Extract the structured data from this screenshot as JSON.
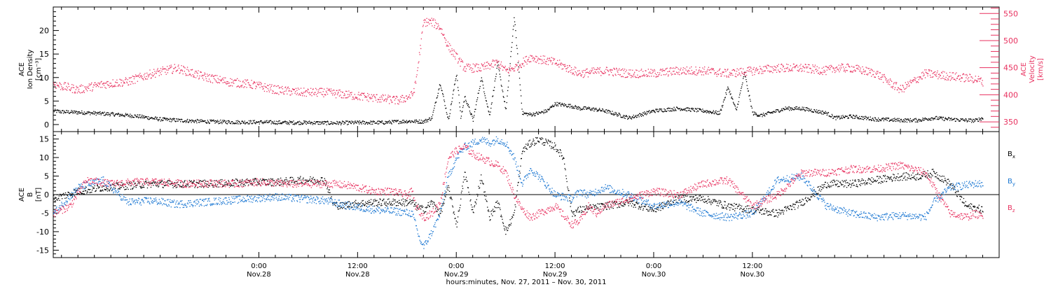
{
  "colors": {
    "black": "#000000",
    "pink": "#e8315f",
    "blue": "#1976d2"
  },
  "chart_data": [
    {
      "type": "scatter",
      "panel": "top",
      "ylabel_left": [
        "ACE",
        "Ion Density",
        "[cm⁻³]"
      ],
      "ylabel_right": [
        "ACE",
        "Velocity",
        "[km/s]"
      ],
      "ylim_left": [
        -1.5,
        25
      ],
      "ylim_right": [
        332,
        562
      ],
      "yticks_left": [
        "0",
        "5",
        "10",
        "15",
        "20"
      ],
      "yticks_right": [
        "350",
        "400",
        "450",
        "500",
        "550"
      ],
      "series": [
        {
          "key": "density",
          "axis": "left",
          "color": "black",
          "x": [
            -1,
            0,
            3,
            6,
            9,
            12,
            15,
            18,
            21,
            24,
            27,
            30,
            33,
            36,
            39,
            42,
            44,
            45,
            46,
            47,
            48,
            48.5,
            49,
            50,
            51,
            52,
            53,
            54,
            55,
            56,
            57,
            58,
            59,
            60,
            62,
            63,
            64,
            66,
            67,
            68,
            69,
            70,
            72,
            75,
            78,
            80,
            81,
            82,
            83,
            84,
            85,
            86,
            87,
            88,
            90,
            93,
            94,
            96,
            99,
            102,
            104,
            106,
            108,
            110,
            111,
            112
          ],
          "y": [
            3,
            2.8,
            2.6,
            2.3,
            1.9,
            1.2,
            0.9,
            0.7,
            0.6,
            0.6,
            0.5,
            0.5,
            0.4,
            0.5,
            0.5,
            0.8,
            0.7,
            1.5,
            9,
            1,
            11,
            1.5,
            6,
            1,
            10,
            2,
            13,
            3,
            23,
            2.5,
            2.2,
            2.5,
            3,
            4.5,
            4,
            3.5,
            3.5,
            3,
            2.5,
            2,
            1.5,
            2,
            3,
            3.5,
            3,
            2.5,
            8,
            3,
            11,
            2.5,
            2,
            2.5,
            3,
            3.5,
            3.5,
            2.5,
            1.5,
            1.8,
            1.2,
            1,
            1,
            1.5,
            1.2,
            1,
            0.9,
            1.5
          ]
        },
        {
          "key": "velocity",
          "axis": "right",
          "color": "pink",
          "x": [
            -1,
            2,
            5,
            8,
            11,
            14,
            17,
            20,
            23,
            26,
            29,
            32,
            35,
            38,
            41,
            42.6,
            43,
            44,
            45,
            46,
            47,
            48,
            49,
            51,
            53,
            54,
            55,
            57,
            60,
            63,
            66,
            69,
            72,
            75,
            78,
            81,
            84,
            87,
            90,
            93,
            94,
            96,
            99,
            102,
            105,
            108,
            111,
            112
          ],
          "y": [
            420,
            410,
            420,
            425,
            440,
            450,
            435,
            425,
            420,
            410,
            405,
            405,
            400,
            395,
            390,
            400,
            420,
            535,
            535,
            525,
            490,
            470,
            450,
            450,
            460,
            445,
            450,
            470,
            460,
            440,
            445,
            440,
            440,
            445,
            445,
            440,
            445,
            450,
            450,
            445,
            450,
            450,
            440,
            410,
            440,
            435,
            430,
            425
          ]
        }
      ]
    },
    {
      "type": "scatter",
      "panel": "bottom",
      "ylabel_left": [
        "ACE",
        "B",
        "[nT]"
      ],
      "ylim": [
        -17,
        17
      ],
      "yticks": [
        "-15",
        "-10",
        "-5",
        "0",
        "5",
        "10",
        "15"
      ],
      "legend_position": "right",
      "series": [
        {
          "key": "bx",
          "name": "Bx",
          "color": "black",
          "x": [
            -1,
            2,
            5,
            8,
            11,
            14,
            17,
            20,
            23,
            26,
            29,
            32,
            33,
            34,
            35,
            38,
            41,
            42.6,
            43,
            44,
            45,
            46,
            47,
            48,
            49,
            50,
            51,
            52,
            53,
            54,
            55,
            56,
            57,
            58,
            60,
            61,
            62,
            63,
            66,
            69,
            72,
            75,
            78,
            81,
            84,
            87,
            90,
            93,
            96,
            99,
            102,
            104,
            106,
            108,
            110,
            112
          ],
          "y": [
            -1,
            1,
            2,
            2.5,
            3,
            3,
            3,
            3.2,
            3.5,
            3.5,
            4,
            4,
            -2.5,
            -3,
            -2.5,
            -2,
            -2,
            -2,
            -3,
            -4,
            -2,
            -5,
            2,
            -8,
            6,
            -5,
            5,
            -6,
            -2,
            -10,
            -5,
            12,
            14,
            15,
            13,
            10,
            -5,
            -4,
            -3,
            -2,
            -4,
            -1,
            -1,
            -3,
            -4,
            -5,
            -2,
            3,
            3,
            4,
            5,
            5,
            6,
            3,
            -3,
            -4
          ]
        },
        {
          "key": "by",
          "name": "By",
          "color": "blue",
          "x": [
            -1,
            2,
            5,
            8,
            11,
            14,
            17,
            20,
            23,
            26,
            29,
            32,
            35,
            38,
            41,
            42.6,
            43,
            43.5,
            44,
            45,
            46,
            47,
            48,
            49,
            50,
            51,
            52,
            53,
            54,
            55,
            56,
            57,
            58,
            60,
            62,
            63,
            64,
            66,
            69,
            72,
            75,
            78,
            81,
            84,
            87,
            90,
            93,
            96,
            99,
            102,
            105,
            106,
            108,
            111,
            112
          ],
          "y": [
            -5,
            2,
            4,
            -2,
            -1.5,
            -2.5,
            -2,
            -1.5,
            -1,
            -0.5,
            -1,
            -1.5,
            -3,
            -4,
            -4.5,
            -5,
            -8,
            -12,
            -14,
            -10,
            -5,
            5,
            10,
            13,
            14,
            15,
            14,
            15,
            14,
            10,
            3,
            7,
            5,
            0,
            -1,
            1,
            0,
            2,
            0,
            -3,
            -2,
            -5,
            -6,
            -5,
            4,
            5,
            -3,
            -5,
            -6,
            -5.5,
            -6,
            -2,
            2,
            3,
            3
          ]
        },
        {
          "key": "bz",
          "name": "Bz",
          "color": "pink",
          "x": [
            -1,
            1,
            3,
            6,
            9,
            12,
            15,
            18,
            21,
            24,
            27,
            30,
            33,
            35,
            38,
            40,
            42,
            42.6,
            43,
            44,
            45,
            46,
            47,
            48,
            49,
            50,
            51,
            52,
            53,
            54,
            55,
            56,
            57,
            58,
            60,
            62,
            63,
            64,
            65,
            66,
            69,
            72,
            75,
            78,
            81,
            84,
            87,
            90,
            93,
            96,
            99,
            102,
            105,
            108,
            110,
            111,
            112
          ],
          "y": [
            -5,
            -3,
            4,
            3,
            3.5,
            3.5,
            3,
            3.2,
            3,
            3.5,
            3,
            3,
            3,
            2.5,
            1,
            1,
            0,
            1,
            -3,
            -6,
            -5,
            -2,
            10,
            12,
            13,
            11,
            10,
            9,
            8,
            6,
            0,
            -4,
            -6,
            -5,
            -3,
            -8,
            -7,
            -3,
            -5,
            -3,
            -1,
            1,
            0,
            3,
            4,
            -3,
            0,
            6,
            6,
            7,
            7,
            8,
            6,
            -5,
            -6,
            -5,
            -6
          ]
        }
      ]
    }
  ],
  "x_axis": {
    "range_hours": [
      -1,
      114
    ],
    "ticks": [
      {
        "time": "0:00",
        "date": "Nov.28"
      },
      {
        "time": "12:00",
        "date": "Nov.28"
      },
      {
        "time": "0:00",
        "date": "Nov.29"
      },
      {
        "time": "12:00",
        "date": "Nov.29"
      },
      {
        "time": "0:00",
        "date": "Nov.30"
      },
      {
        "time": "12:00",
        "date": "Nov.30"
      }
    ],
    "label": "hours:minutes, Nov. 27, 2011 – Nov. 30, 2011"
  },
  "legend": {
    "bx_main": "B",
    "bx_sub": "x",
    "by_main": "B",
    "by_sub": "y",
    "bz_main": "B",
    "bz_sub": "z"
  }
}
